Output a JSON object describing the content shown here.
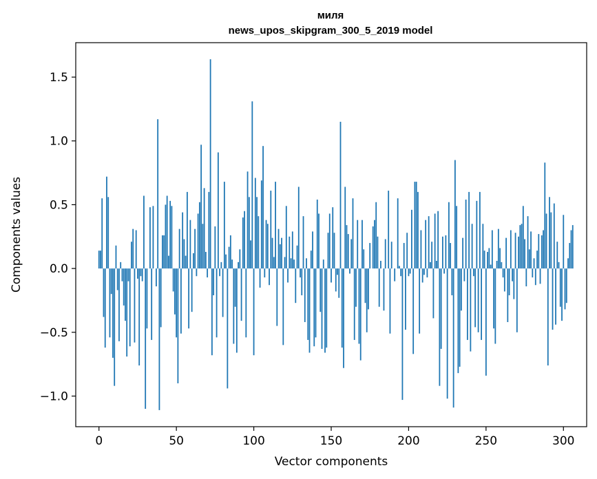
{
  "chart_data": {
    "type": "bar",
    "title": "миля",
    "subtitle": "news_upos_skipgram_300_5_2019 model",
    "xlabel": "Vector components",
    "ylabel": "Components values",
    "xlim": [
      -15,
      315
    ],
    "ylim": [
      -1.24,
      1.77
    ],
    "x_ticks": [
      0,
      50,
      100,
      150,
      200,
      250,
      300
    ],
    "x_tick_labels": [
      "0",
      "50",
      "100",
      "150",
      "200",
      "250",
      "300"
    ],
    "y_ticks": [
      -1.0,
      -0.5,
      0.0,
      0.5,
      1.0,
      1.5
    ],
    "y_tick_labels": [
      "−1.0",
      "−0.5",
      "0.0",
      "0.5",
      "1.0",
      "1.5"
    ],
    "bar_color": "#1f77b4",
    "grid": false,
    "legend": "none",
    "series": [
      {
        "values": [
          0.14,
          0.14,
          0.55,
          -0.38,
          -0.62,
          0.72,
          0.56,
          -0.54,
          -0.2,
          -0.7,
          -0.92,
          0.18,
          -0.17,
          -0.57,
          0.05,
          -0.1,
          -0.29,
          -0.41,
          -0.69,
          -0.1,
          -0.61,
          0.21,
          0.31,
          -0.58,
          0.3,
          -0.08,
          -0.76,
          -0.06,
          -0.1,
          0.57,
          -1.1,
          -0.47,
          0.0,
          0.48,
          -0.56,
          0.49,
          0.0,
          -0.14,
          1.17,
          -1.11,
          -0.46,
          0.26,
          0.26,
          0.5,
          0.57,
          0.1,
          0.53,
          0.49,
          -0.18,
          -0.36,
          -0.54,
          -0.9,
          0.31,
          -0.51,
          0.44,
          0.23,
          0.1,
          0.6,
          -0.47,
          0.38,
          -0.34,
          0.12,
          0.31,
          -0.06,
          0.43,
          0.52,
          0.97,
          0.35,
          0.63,
          0.13,
          -0.07,
          0.6,
          1.64,
          -0.68,
          -0.21,
          0.33,
          -0.54,
          0.91,
          -0.06,
          0.05,
          -0.38,
          0.68,
          0.11,
          -0.94,
          0.17,
          0.26,
          0.07,
          -0.59,
          -0.3,
          -0.66,
          0.05,
          0.15,
          -0.41,
          0.4,
          0.45,
          -0.54,
          0.76,
          0.56,
          0.22,
          1.31,
          -0.68,
          0.71,
          0.56,
          0.41,
          -0.15,
          0.69,
          0.96,
          -0.07,
          0.38,
          0.35,
          -0.13,
          0.61,
          0.24,
          0.09,
          0.68,
          -0.45,
          0.31,
          0.19,
          0.24,
          -0.6,
          0.09,
          0.49,
          -0.11,
          0.25,
          0.08,
          0.29,
          0.07,
          -0.27,
          0.18,
          0.64,
          -0.07,
          -0.21,
          0.41,
          -0.42,
          0.08,
          -0.56,
          -0.66,
          0.14,
          0.29,
          -0.61,
          -0.54,
          0.54,
          0.43,
          -0.34,
          -0.63,
          0.07,
          -0.66,
          -0.62,
          0.28,
          0.43,
          -0.11,
          0.48,
          0.28,
          -0.18,
          -0.05,
          -0.23,
          1.15,
          -0.62,
          -0.78,
          0.64,
          0.34,
          0.27,
          -0.04,
          0.23,
          0.55,
          -0.56,
          -0.3,
          0.38,
          -0.59,
          -0.72,
          0.38,
          0.15,
          -0.27,
          -0.5,
          -0.32,
          0.2,
          0.0,
          0.33,
          0.38,
          0.52,
          0.25,
          -0.3,
          0.06,
          0.0,
          -0.33,
          0.23,
          0.0,
          0.61,
          -0.51,
          0.21,
          0.0,
          -0.1,
          0.0,
          0.55,
          0.02,
          -0.06,
          -1.03,
          0.2,
          -0.48,
          0.28,
          -0.06,
          -0.04,
          0.46,
          -0.67,
          0.68,
          0.68,
          0.6,
          -0.51,
          0.3,
          -0.11,
          -0.05,
          0.38,
          -0.07,
          0.41,
          0.05,
          0.21,
          -0.39,
          0.43,
          0.06,
          0.45,
          -0.92,
          -0.63,
          0.25,
          -0.04,
          0.26,
          -1.02,
          0.52,
          0.2,
          -0.21,
          -1.09,
          0.85,
          0.49,
          -0.82,
          -0.77,
          -0.33,
          0.24,
          -0.1,
          0.54,
          -0.56,
          0.6,
          -0.65,
          0.35,
          -0.06,
          -0.46,
          0.53,
          -0.5,
          0.6,
          -0.56,
          0.35,
          0.14,
          -0.84,
          0.13,
          0.16,
          0.03,
          0.3,
          -0.47,
          -0.59,
          0.06,
          0.31,
          0.16,
          0.05,
          -0.07,
          -0.18,
          0.24,
          -0.42,
          -0.21,
          0.3,
          -0.1,
          -0.24,
          0.28,
          -0.5,
          0.25,
          0.34,
          0.35,
          0.49,
          0.23,
          -0.14,
          0.41,
          0.15,
          0.29,
          -0.07,
          0.08,
          -0.13,
          0.14,
          0.27,
          -0.12,
          0.26,
          0.3,
          0.83,
          0.43,
          -0.76,
          0.56,
          0.44,
          -0.48,
          0.51,
          -0.44,
          0.21,
          0.05,
          -0.3,
          -0.41,
          0.42,
          -0.32,
          -0.27,
          0.08,
          0.2,
          0.3,
          0.34,
          0.0
        ]
      }
    ]
  }
}
